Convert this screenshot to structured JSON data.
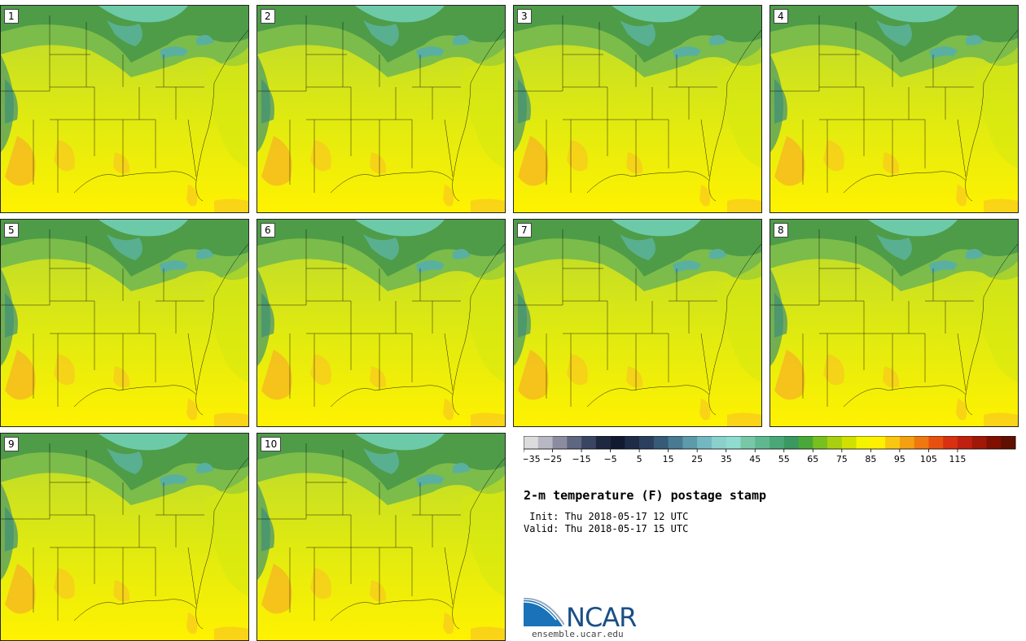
{
  "panels": [
    "1",
    "2",
    "3",
    "4",
    "5",
    "6",
    "7",
    "8",
    "9",
    "10"
  ],
  "colorbar": {
    "colors": [
      "#dcdcdc",
      "#b8b8c4",
      "#8c8ca0",
      "#5e6680",
      "#3a4563",
      "#1e2840",
      "#111a30",
      "#1f2c48",
      "#2a3f5e",
      "#365a78",
      "#487a92",
      "#5d9aaa",
      "#73b8c0",
      "#8cd0cc",
      "#90dcd0",
      "#78c8a8",
      "#5fb890",
      "#4aa878",
      "#3a9860",
      "#4aa838",
      "#78c020",
      "#a8d010",
      "#d0e000",
      "#f4f400",
      "#fff000",
      "#f8c810",
      "#f4a010",
      "#f07810",
      "#e85010",
      "#d83010",
      "#c02010",
      "#a01808",
      "#801000",
      "#601000"
    ],
    "tick_labels": [
      "−35",
      "−25",
      "−15",
      "−5",
      "5",
      "15",
      "25",
      "35",
      "45",
      "55",
      "65",
      "75",
      "85",
      "95",
      "105",
      "115"
    ]
  },
  "title": "2-m temperature (F) postage stamp",
  "init": " Init: Thu 2018-05-17 12 UTC",
  "valid": "Valid: Thu 2018-05-17 15 UTC",
  "logo": {
    "text": "NCAR",
    "url": "ensemble.ucar.edu"
  }
}
